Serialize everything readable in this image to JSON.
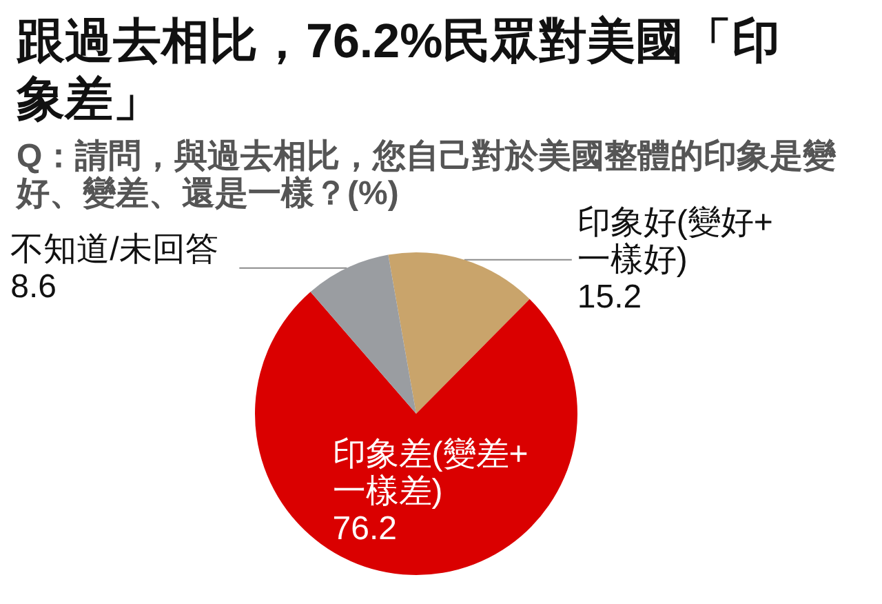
{
  "chart_data": {
    "type": "pie",
    "title": "跟過去相比，76.2%民眾對美國「印象差」",
    "subtitle": "Q：請問，與過去相比，您自己對於美國整體的印象是變好、變差、還是一樣？(%)",
    "categories": [
      "印象好(變好+一樣好)",
      "印象差(變差+一樣差)",
      "不知道/未回答"
    ],
    "values": [
      15.2,
      76.2,
      8.6
    ],
    "colors": [
      "#c9a46b",
      "#da0000",
      "#9a9da1"
    ],
    "data_labels": true
  }
}
